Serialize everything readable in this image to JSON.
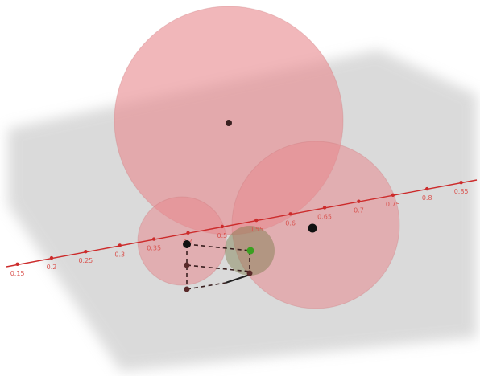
{
  "scene": {
    "colors": {
      "plane": "#bdbdbd",
      "sphere_fill": "#e88a8f",
      "sphere_stroke": "#c9767b",
      "axis": "#cc2b2b",
      "point": "#3a2020",
      "small_sphere": "#7a7a4a",
      "green_point": "#3aa020"
    },
    "axis_ticks": [
      {
        "label": "0.15"
      },
      {
        "label": "0.2"
      },
      {
        "label": "0.25"
      },
      {
        "label": "0.3"
      },
      {
        "label": "0.35"
      },
      {
        "label": "0.4"
      },
      {
        "label": "0.5"
      },
      {
        "label": "0.55"
      },
      {
        "label": "0.6"
      },
      {
        "label": "0.65"
      },
      {
        "label": "0.7"
      },
      {
        "label": "0.75"
      },
      {
        "label": "0.8"
      },
      {
        "label": "0.85"
      }
    ]
  }
}
